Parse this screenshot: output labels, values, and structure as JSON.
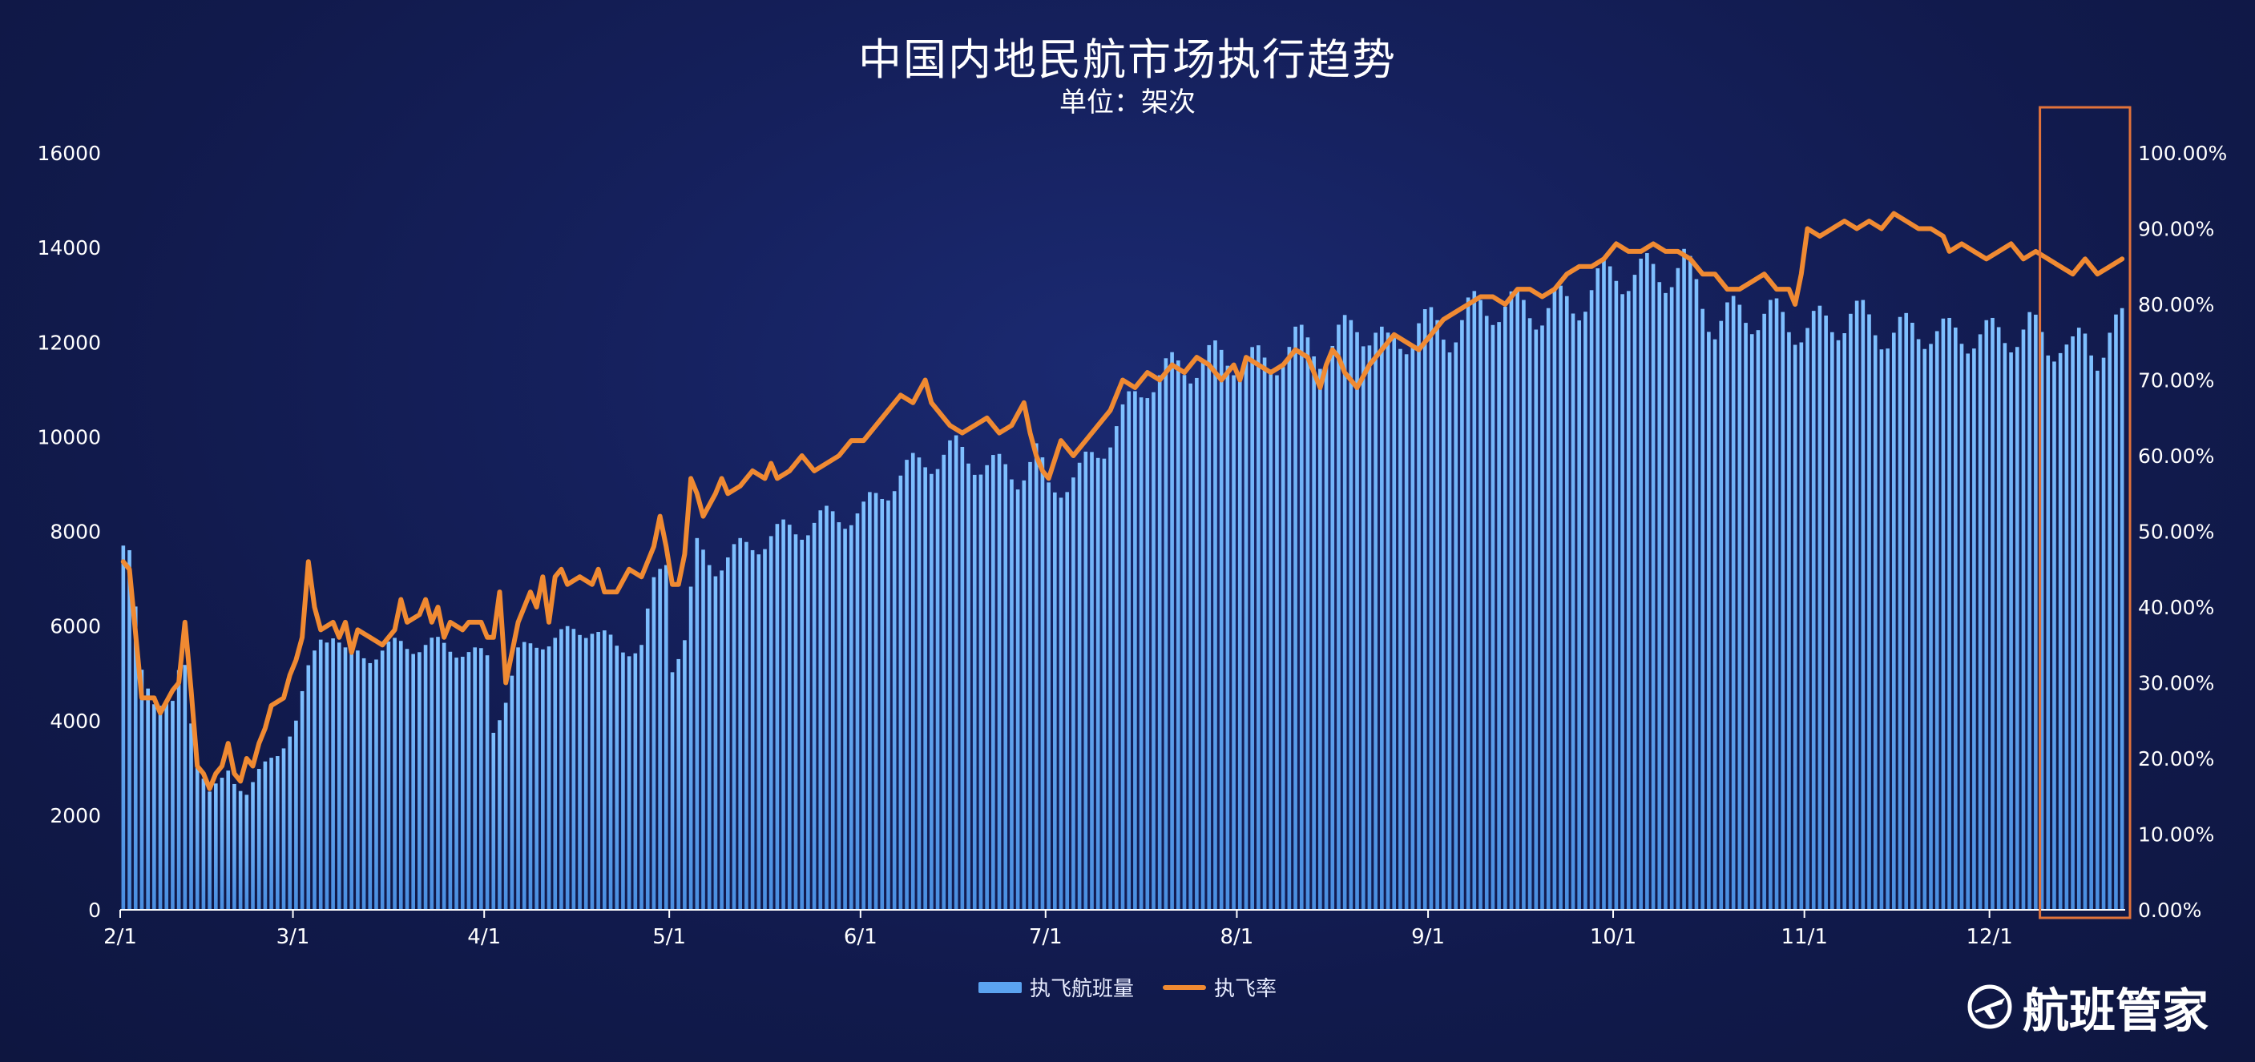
{
  "title": "中国内地民航市场执行趋势",
  "subtitle": "单位：架次",
  "brand": {
    "name": "航班管家",
    "logo_icon": "plane-circle-icon"
  },
  "colors": {
    "bars": "#5ba3f0",
    "line": "#f08a32",
    "highlight_box": "#e2733a",
    "axis": "#ffffff"
  },
  "chart_data": {
    "type": "bar+line",
    "grid": false,
    "legend_position": "bottom",
    "x_tick_labels": [
      "2/1",
      "3/1",
      "4/1",
      "5/1",
      "6/1",
      "7/1",
      "8/1",
      "9/1",
      "10/1",
      "11/1",
      "12/1"
    ],
    "x_tick_day_index": [
      0,
      28,
      59,
      89,
      120,
      150,
      181,
      212,
      242,
      273,
      303
    ],
    "num_days": 325,
    "y_left": {
      "min": 0,
      "max": 16000,
      "ticks": [
        0,
        2000,
        4000,
        6000,
        8000,
        10000,
        12000,
        14000,
        16000
      ]
    },
    "y_right": {
      "min": 0,
      "max": 100,
      "ticks": [
        "0.00%",
        "10.00%",
        "20.00%",
        "30.00%",
        "40.00%",
        "50.00%",
        "60.00%",
        "70.00%",
        "80.00%",
        "90.00%",
        "100.00%"
      ]
    },
    "highlight_range_days": [
      313,
      324
    ],
    "series": [
      {
        "name": "执飞航班量",
        "kind": "bar",
        "axis": "left",
        "anchors": [
          [
            0,
            7700
          ],
          [
            1,
            7400
          ],
          [
            3,
            5000
          ],
          [
            5,
            4500
          ],
          [
            8,
            4300
          ],
          [
            9,
            4900
          ],
          [
            10,
            5100
          ],
          [
            11,
            4000
          ],
          [
            12,
            3200
          ],
          [
            14,
            2500
          ],
          [
            16,
            2700
          ],
          [
            17,
            2900
          ],
          [
            18,
            2700
          ],
          [
            20,
            2500
          ],
          [
            22,
            2900
          ],
          [
            25,
            3300
          ],
          [
            28,
            4000
          ],
          [
            30,
            5000
          ],
          [
            32,
            5800
          ],
          [
            34,
            5900
          ],
          [
            36,
            5400
          ],
          [
            40,
            5400
          ],
          [
            45,
            5600
          ],
          [
            50,
            5600
          ],
          [
            55,
            5500
          ],
          [
            59,
            5300
          ],
          [
            60,
            3800
          ],
          [
            62,
            4500
          ],
          [
            64,
            5400
          ],
          [
            68,
            5700
          ],
          [
            72,
            5800
          ],
          [
            76,
            6000
          ],
          [
            80,
            5500
          ],
          [
            84,
            5600
          ],
          [
            86,
            6800
          ],
          [
            88,
            7400
          ],
          [
            89,
            5200
          ],
          [
            91,
            5700
          ],
          [
            93,
            7600
          ],
          [
            96,
            7300
          ],
          [
            100,
            7600
          ],
          [
            105,
            7900
          ],
          [
            110,
            8100
          ],
          [
            115,
            8300
          ],
          [
            120,
            8400
          ],
          [
            125,
            9100
          ],
          [
            130,
            9500
          ],
          [
            135,
            9700
          ],
          [
            140,
            9400
          ],
          [
            145,
            9200
          ],
          [
            148,
            9600
          ],
          [
            150,
            8900
          ],
          [
            155,
            9200
          ],
          [
            158,
            9700
          ],
          [
            162,
            10400
          ],
          [
            166,
            11200
          ],
          [
            170,
            11400
          ],
          [
            175,
            11600
          ],
          [
            180,
            11700
          ],
          [
            185,
            11500
          ],
          [
            190,
            12000
          ],
          [
            195,
            11800
          ],
          [
            200,
            12400
          ],
          [
            203,
            12200
          ],
          [
            205,
            11800
          ],
          [
            210,
            12400
          ],
          [
            215,
            12200
          ],
          [
            218,
            12600
          ],
          [
            222,
            12800
          ],
          [
            226,
            12700
          ],
          [
            230,
            12700
          ],
          [
            235,
            12800
          ],
          [
            238,
            13100
          ],
          [
            242,
            13500
          ],
          [
            246,
            13400
          ],
          [
            250,
            13500
          ],
          [
            253,
            13600
          ],
          [
            256,
            12900
          ],
          [
            258,
            12400
          ],
          [
            262,
            12600
          ],
          [
            266,
            12600
          ],
          [
            270,
            12400
          ],
          [
            273,
            12300
          ],
          [
            277,
            12400
          ],
          [
            280,
            12600
          ],
          [
            283,
            12400
          ],
          [
            286,
            12200
          ],
          [
            289,
            12200
          ],
          [
            293,
            12300
          ],
          [
            296,
            12100
          ],
          [
            300,
            12200
          ],
          [
            303,
            12100
          ],
          [
            306,
            12200
          ],
          [
            309,
            12300
          ],
          [
            312,
            11900
          ],
          [
            314,
            12100
          ],
          [
            316,
            11800
          ],
          [
            318,
            12000
          ],
          [
            320,
            11800
          ],
          [
            322,
            12200
          ],
          [
            324,
            12300
          ]
        ]
      },
      {
        "name": "执飞率",
        "kind": "line",
        "axis": "right",
        "anchors": [
          [
            0,
            46
          ],
          [
            1,
            45
          ],
          [
            3,
            28
          ],
          [
            5,
            28
          ],
          [
            6,
            26
          ],
          [
            8,
            29
          ],
          [
            9,
            30
          ],
          [
            10,
            38
          ],
          [
            11,
            29
          ],
          [
            12,
            19
          ],
          [
            13,
            18
          ],
          [
            14,
            16
          ],
          [
            15,
            18
          ],
          [
            16,
            19
          ],
          [
            17,
            22
          ],
          [
            18,
            18
          ],
          [
            19,
            17
          ],
          [
            20,
            20
          ],
          [
            21,
            19
          ],
          [
            22,
            22
          ],
          [
            23,
            24
          ],
          [
            24,
            27
          ],
          [
            26,
            28
          ],
          [
            27,
            31
          ],
          [
            28,
            33
          ],
          [
            29,
            36
          ],
          [
            30,
            46
          ],
          [
            31,
            40
          ],
          [
            32,
            37
          ],
          [
            34,
            38
          ],
          [
            35,
            36
          ],
          [
            36,
            38
          ],
          [
            37,
            34
          ],
          [
            38,
            37
          ],
          [
            40,
            36
          ],
          [
            42,
            35
          ],
          [
            44,
            37
          ],
          [
            45,
            41
          ],
          [
            46,
            38
          ],
          [
            48,
            39
          ],
          [
            49,
            41
          ],
          [
            50,
            38
          ],
          [
            51,
            40
          ],
          [
            52,
            36
          ],
          [
            53,
            38
          ],
          [
            55,
            37
          ],
          [
            56,
            38
          ],
          [
            58,
            38
          ],
          [
            59,
            36
          ],
          [
            60,
            36
          ],
          [
            61,
            42
          ],
          [
            62,
            30
          ],
          [
            64,
            38
          ],
          [
            66,
            42
          ],
          [
            67,
            40
          ],
          [
            68,
            44
          ],
          [
            69,
            38
          ],
          [
            70,
            44
          ],
          [
            71,
            45
          ],
          [
            72,
            43
          ],
          [
            74,
            44
          ],
          [
            76,
            43
          ],
          [
            77,
            45
          ],
          [
            78,
            42
          ],
          [
            80,
            42
          ],
          [
            82,
            45
          ],
          [
            84,
            44
          ],
          [
            86,
            48
          ],
          [
            87,
            52
          ],
          [
            88,
            48
          ],
          [
            89,
            43
          ],
          [
            90,
            43
          ],
          [
            91,
            47
          ],
          [
            92,
            57
          ],
          [
            93,
            55
          ],
          [
            94,
            52
          ],
          [
            96,
            55
          ],
          [
            97,
            57
          ],
          [
            98,
            55
          ],
          [
            100,
            56
          ],
          [
            102,
            58
          ],
          [
            104,
            57
          ],
          [
            105,
            59
          ],
          [
            106,
            57
          ],
          [
            108,
            58
          ],
          [
            110,
            60
          ],
          [
            112,
            58
          ],
          [
            114,
            59
          ],
          [
            116,
            60
          ],
          [
            118,
            62
          ],
          [
            120,
            62
          ],
          [
            122,
            64
          ],
          [
            124,
            66
          ],
          [
            126,
            68
          ],
          [
            128,
            67
          ],
          [
            130,
            70
          ],
          [
            131,
            67
          ],
          [
            132,
            66
          ],
          [
            134,
            64
          ],
          [
            136,
            63
          ],
          [
            138,
            64
          ],
          [
            140,
            65
          ],
          [
            142,
            63
          ],
          [
            144,
            64
          ],
          [
            146,
            67
          ],
          [
            147,
            63
          ],
          [
            148,
            60
          ],
          [
            149,
            58
          ],
          [
            150,
            57
          ],
          [
            152,
            62
          ],
          [
            154,
            60
          ],
          [
            156,
            62
          ],
          [
            158,
            64
          ],
          [
            160,
            66
          ],
          [
            161,
            68
          ],
          [
            162,
            70
          ],
          [
            164,
            69
          ],
          [
            166,
            71
          ],
          [
            168,
            70
          ],
          [
            170,
            72
          ],
          [
            172,
            71
          ],
          [
            174,
            73
          ],
          [
            176,
            72
          ],
          [
            178,
            70
          ],
          [
            180,
            72
          ],
          [
            181,
            70
          ],
          [
            182,
            73
          ],
          [
            184,
            72
          ],
          [
            186,
            71
          ],
          [
            188,
            72
          ],
          [
            190,
            74
          ],
          [
            192,
            73
          ],
          [
            193,
            71
          ],
          [
            194,
            69
          ],
          [
            195,
            72
          ],
          [
            196,
            74
          ],
          [
            197,
            73
          ],
          [
            198,
            71
          ],
          [
            200,
            69
          ],
          [
            202,
            72
          ],
          [
            204,
            74
          ],
          [
            206,
            76
          ],
          [
            208,
            75
          ],
          [
            210,
            74
          ],
          [
            212,
            76
          ],
          [
            214,
            78
          ],
          [
            216,
            79
          ],
          [
            218,
            80
          ],
          [
            220,
            81
          ],
          [
            222,
            81
          ],
          [
            224,
            80
          ],
          [
            226,
            82
          ],
          [
            228,
            82
          ],
          [
            230,
            81
          ],
          [
            232,
            82
          ],
          [
            234,
            84
          ],
          [
            236,
            85
          ],
          [
            238,
            85
          ],
          [
            240,
            86
          ],
          [
            242,
            88
          ],
          [
            244,
            87
          ],
          [
            246,
            87
          ],
          [
            248,
            88
          ],
          [
            250,
            87
          ],
          [
            252,
            87
          ],
          [
            254,
            86
          ],
          [
            256,
            84
          ],
          [
            258,
            84
          ],
          [
            260,
            82
          ],
          [
            262,
            82
          ],
          [
            264,
            83
          ],
          [
            266,
            84
          ],
          [
            268,
            82
          ],
          [
            270,
            82
          ],
          [
            271,
            80
          ],
          [
            272,
            84
          ],
          [
            273,
            90
          ],
          [
            275,
            89
          ],
          [
            277,
            90
          ],
          [
            279,
            91
          ],
          [
            281,
            90
          ],
          [
            283,
            91
          ],
          [
            285,
            90
          ],
          [
            287,
            92
          ],
          [
            289,
            91
          ],
          [
            291,
            90
          ],
          [
            293,
            90
          ],
          [
            295,
            89
          ],
          [
            296,
            87
          ],
          [
            298,
            88
          ],
          [
            300,
            87
          ],
          [
            302,
            86
          ],
          [
            304,
            87
          ],
          [
            306,
            88
          ],
          [
            308,
            86
          ],
          [
            310,
            87
          ],
          [
            312,
            86
          ],
          [
            314,
            85
          ],
          [
            316,
            84
          ],
          [
            318,
            86
          ],
          [
            320,
            84
          ],
          [
            322,
            85
          ],
          [
            324,
            86
          ]
        ]
      }
    ]
  }
}
